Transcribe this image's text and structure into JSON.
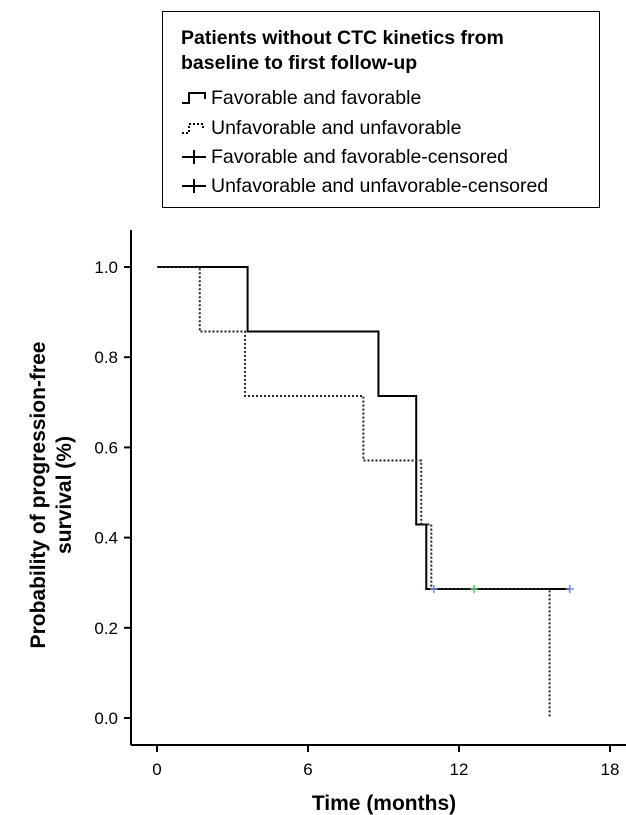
{
  "legend": {
    "title_line1": "Patients without CTC kinetics from",
    "title_line2": "baseline to first follow-up",
    "entries": [
      {
        "label": "Favorable and favorable",
        "symbol": "step-solid"
      },
      {
        "label": "Unfavorable and unfavorable",
        "symbol": "step-dotted"
      },
      {
        "label": "Favorable and favorable-censored",
        "symbol": "cross"
      },
      {
        "label": "Unfavorable and unfavorable-censored",
        "symbol": "cross"
      }
    ]
  },
  "chart_data": {
    "type": "line",
    "title": "",
    "xlabel": "Time (months)",
    "ylabel_line1": "Probability of progression-free",
    "ylabel_line2": "survival (%)",
    "xlim": [
      0,
      18
    ],
    "ylim": [
      0,
      1.0
    ],
    "xticks": [
      0,
      6,
      12,
      18
    ],
    "yticks": [
      0.0,
      0.2,
      0.4,
      0.6,
      0.8,
      1.0
    ],
    "ytick_labels": [
      "0.0",
      "0.2",
      "0.4",
      "0.6",
      "0.8",
      "1.0"
    ],
    "grid": false,
    "legend_position": "top-right",
    "series": [
      {
        "name": "Favorable and favorable",
        "style": "solid",
        "color": "#000000",
        "steps": [
          [
            0,
            1.0
          ],
          [
            3.6,
            0.857
          ],
          [
            8.8,
            0.714
          ],
          [
            10.3,
            0.429
          ],
          [
            10.7,
            0.286
          ],
          [
            16.4,
            0.286
          ]
        ]
      },
      {
        "name": "Unfavorable and unfavorable",
        "style": "dotted",
        "color": "#222222",
        "steps": [
          [
            0,
            1.0
          ],
          [
            1.7,
            0.857
          ],
          [
            3.5,
            0.714
          ],
          [
            8.2,
            0.571
          ],
          [
            10.5,
            0.429
          ],
          [
            10.9,
            0.286
          ],
          [
            15.6,
            0.0
          ]
        ]
      }
    ],
    "censored": [
      {
        "name": "Favorable and favorable-censored",
        "color": "#6d84e0",
        "points": [
          [
            11.0,
            0.286
          ],
          [
            16.4,
            0.286
          ]
        ]
      },
      {
        "name": "Unfavorable and unfavorable-censored",
        "color": "#5fbf70",
        "points": [
          [
            12.6,
            0.286
          ]
        ]
      }
    ]
  }
}
